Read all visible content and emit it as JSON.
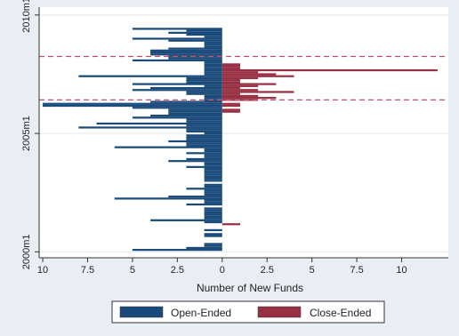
{
  "chart_data": {
    "type": "bar",
    "orientation": "horizontal",
    "layout": "back-to-back",
    "xlabel": "Number of New Funds",
    "x_ticks": [
      {
        "value": -10,
        "label": "10"
      },
      {
        "value": -7.5,
        "label": "7.5"
      },
      {
        "value": -5,
        "label": "5"
      },
      {
        "value": -2.5,
        "label": "2.5"
      },
      {
        "value": 0,
        "label": "0"
      },
      {
        "value": 2.5,
        "label": "2.5"
      },
      {
        "value": 5,
        "label": "5"
      },
      {
        "value": 7.5,
        "label": "7.5"
      },
      {
        "value": 10,
        "label": "10"
      }
    ],
    "y_ticks": [
      {
        "value": 0,
        "label": "2000m1"
      },
      {
        "value": 60,
        "label": "2005m1"
      },
      {
        "value": 120,
        "label": "2010m1"
      }
    ],
    "xlim": [
      -10.2,
      12.6
    ],
    "ylim": [
      -3,
      124
    ],
    "grid": true,
    "reference_lines": [
      {
        "axis": "y",
        "value": 77,
        "color": "#c0506a",
        "style": "dashed"
      },
      {
        "axis": "y",
        "value": 99,
        "color": "#c0506a",
        "style": "dashed"
      }
    ],
    "legend": {
      "position": "bottom"
    },
    "colors": {
      "open_ended": "#1a4a7a",
      "close_ended": "#983043"
    },
    "series": [
      {
        "name": "Open-Ended",
        "color": "#1a4a7a",
        "direction": "left",
        "points": [
          [
            1,
            5
          ],
          [
            2,
            2
          ],
          [
            3,
            1
          ],
          [
            4,
            1
          ],
          [
            8,
            1
          ],
          [
            9,
            1
          ],
          [
            11,
            1
          ],
          [
            15,
            1
          ],
          [
            16,
            4
          ],
          [
            17,
            1
          ],
          [
            18,
            1
          ],
          [
            19,
            1
          ],
          [
            20,
            1
          ],
          [
            21,
            1
          ],
          [
            22,
            1
          ],
          [
            24,
            2
          ],
          [
            25,
            1
          ],
          [
            26,
            1
          ],
          [
            27,
            6
          ],
          [
            28,
            3
          ],
          [
            29,
            1
          ],
          [
            30,
            1
          ],
          [
            31,
            1
          ],
          [
            32,
            2
          ],
          [
            33,
            1
          ],
          [
            34,
            1
          ],
          [
            36,
            1
          ],
          [
            37,
            1
          ],
          [
            38,
            1
          ],
          [
            39,
            1
          ],
          [
            40,
            1
          ],
          [
            41,
            1
          ],
          [
            42,
            1
          ],
          [
            43,
            2
          ],
          [
            44,
            1
          ],
          [
            45,
            1
          ],
          [
            46,
            3
          ],
          [
            47,
            2
          ],
          [
            48,
            1
          ],
          [
            49,
            1
          ],
          [
            50,
            2
          ],
          [
            51,
            1
          ],
          [
            52,
            1
          ],
          [
            53,
            6
          ],
          [
            54,
            2
          ],
          [
            55,
            2
          ],
          [
            56,
            3
          ],
          [
            57,
            2
          ],
          [
            58,
            2
          ],
          [
            59,
            2
          ],
          [
            60,
            1
          ],
          [
            61,
            2
          ],
          [
            62,
            2
          ],
          [
            63,
            8
          ],
          [
            64,
            2
          ],
          [
            65,
            7
          ],
          [
            66,
            2
          ],
          [
            67,
            2
          ],
          [
            68,
            5
          ],
          [
            69,
            4
          ],
          [
            70,
            3
          ],
          [
            71,
            3
          ],
          [
            72,
            3
          ],
          [
            73,
            5
          ],
          [
            74,
            10
          ],
          [
            75,
            10
          ],
          [
            76,
            4
          ],
          [
            77,
            1
          ],
          [
            78,
            1
          ],
          [
            79,
            1
          ],
          [
            80,
            2
          ],
          [
            81,
            2
          ],
          [
            82,
            5
          ],
          [
            83,
            4
          ],
          [
            84,
            1
          ],
          [
            85,
            5
          ],
          [
            86,
            2
          ],
          [
            87,
            2
          ],
          [
            88,
            2
          ],
          [
            89,
            8
          ],
          [
            90,
            1
          ],
          [
            91,
            1
          ],
          [
            92,
            1
          ],
          [
            93,
            1
          ],
          [
            94,
            1
          ],
          [
            95,
            1
          ],
          [
            96,
            1
          ],
          [
            97,
            5
          ],
          [
            98,
            3
          ],
          [
            99,
            3
          ],
          [
            100,
            4
          ],
          [
            101,
            4
          ],
          [
            102,
            4
          ],
          [
            103,
            3
          ],
          [
            104,
            1
          ],
          [
            105,
            1
          ],
          [
            106,
            1
          ],
          [
            107,
            3
          ],
          [
            108,
            5
          ],
          [
            109,
            1
          ],
          [
            110,
            2
          ],
          [
            111,
            3
          ],
          [
            112,
            2
          ],
          [
            113,
            5
          ]
        ]
      },
      {
        "name": "Close-Ended",
        "color": "#983043",
        "direction": "right",
        "points": [
          [
            14,
            1
          ],
          [
            71,
            1
          ],
          [
            72,
            1
          ],
          [
            74,
            1
          ],
          [
            75,
            1
          ],
          [
            77,
            2
          ],
          [
            78,
            3
          ],
          [
            79,
            2
          ],
          [
            80,
            1
          ],
          [
            81,
            4
          ],
          [
            82,
            2
          ],
          [
            83,
            1
          ],
          [
            84,
            2
          ],
          [
            85,
            3
          ],
          [
            86,
            1
          ],
          [
            87,
            1
          ],
          [
            88,
            2
          ],
          [
            89,
            4
          ],
          [
            90,
            3
          ],
          [
            91,
            2
          ],
          [
            92,
            12
          ],
          [
            93,
            1
          ],
          [
            94,
            1
          ],
          [
            95,
            1
          ]
        ]
      }
    ]
  }
}
